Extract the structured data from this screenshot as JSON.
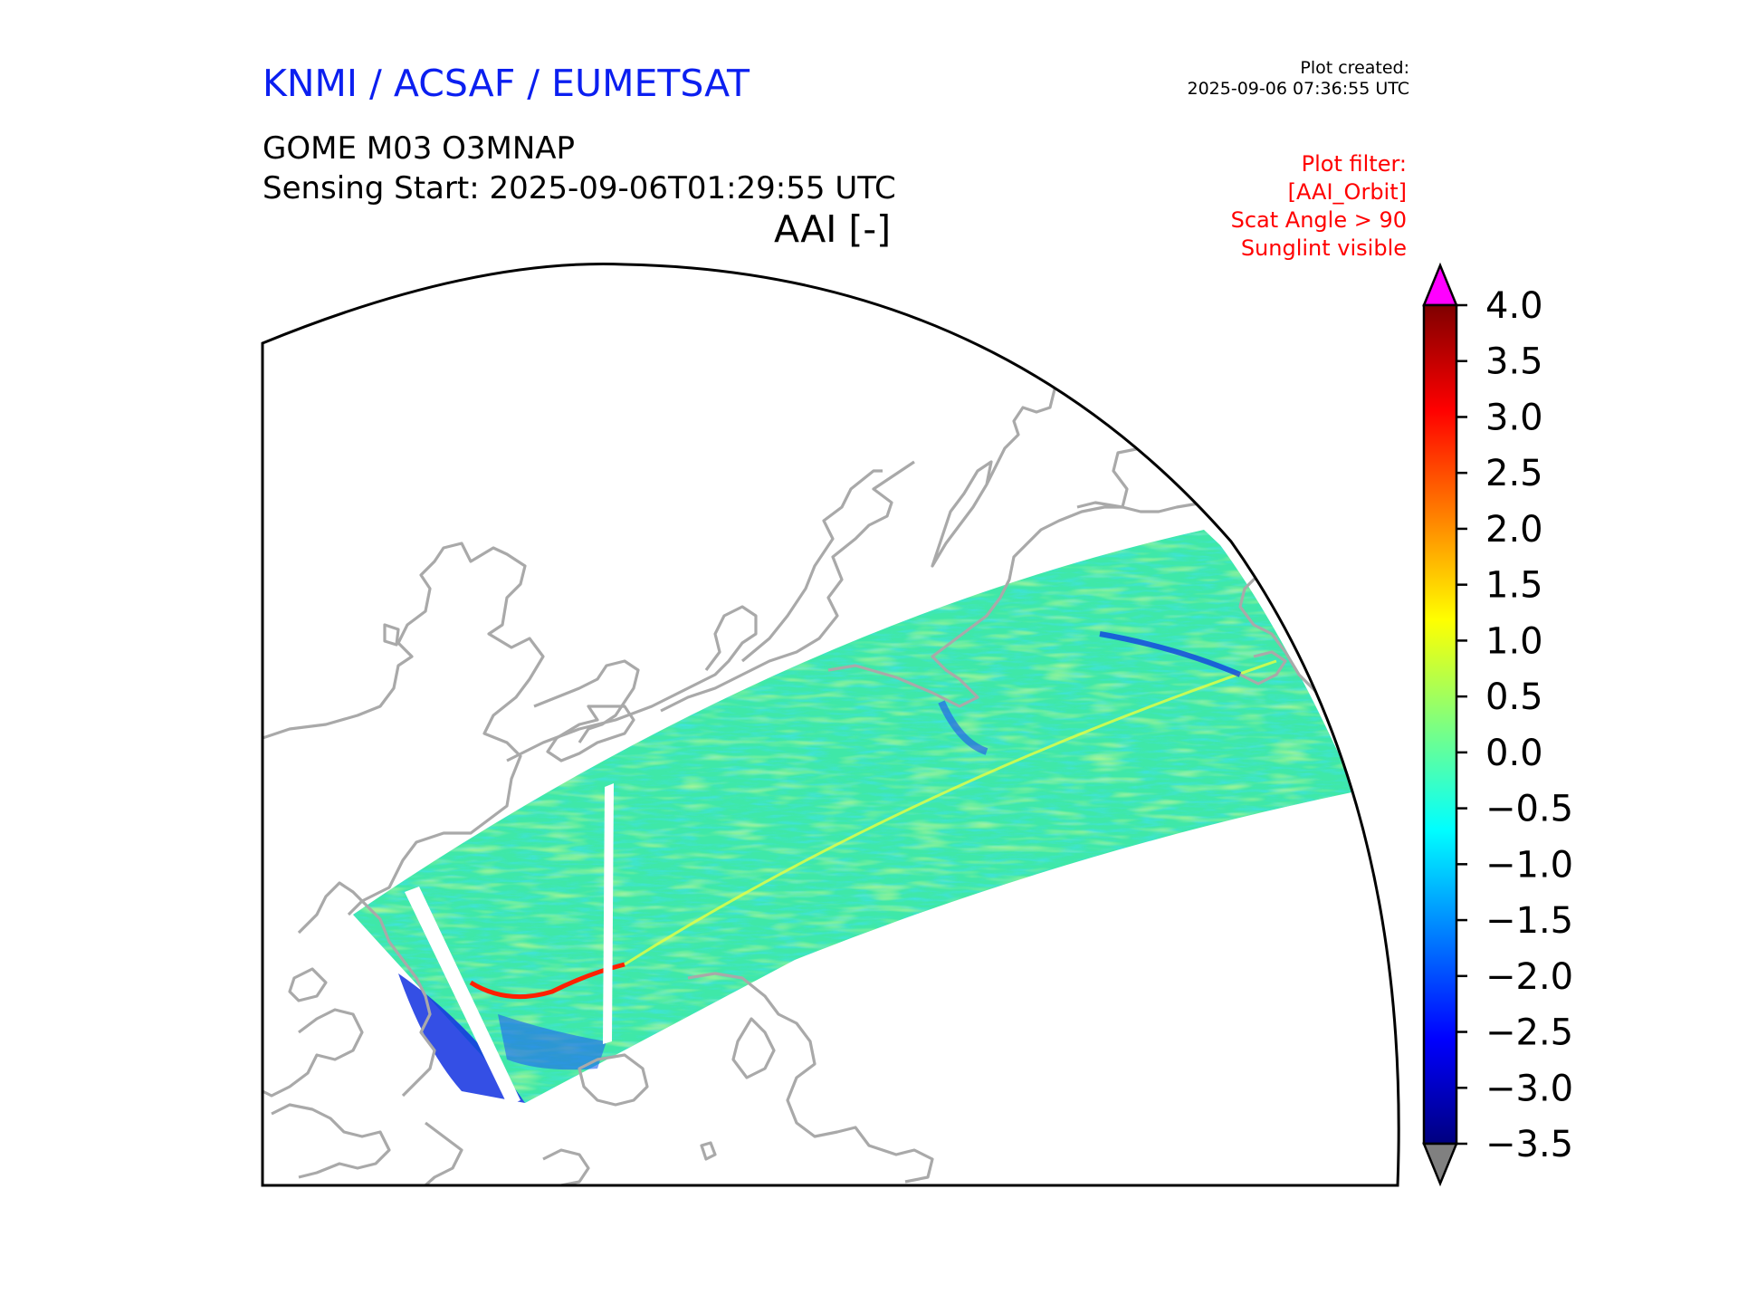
{
  "header": {
    "org": "KNMI / ACSAF / EUMETSAT",
    "created_label": "Plot created:",
    "created_value": "2025-09-06 07:36:55 UTC",
    "product": "GOME M03 O3MNAP",
    "sensing_start": "Sensing Start: 2025-09-06T01:29:55 UTC",
    "parameter": "AAI [-]"
  },
  "filter": {
    "lines": [
      "Plot filter:",
      "[AAI_Orbit]",
      "Scat Angle > 90",
      "Sunglint visible"
    ]
  },
  "colorbar": {
    "min": -3.5,
    "max": 4.0,
    "ticks": [
      "4.0",
      "3.5",
      "3.0",
      "2.5",
      "2.0",
      "1.5",
      "1.0",
      "0.5",
      "0.0",
      "−0.5",
      "−1.0",
      "−1.5",
      "−2.0",
      "−2.5",
      "−3.0",
      "−3.5"
    ],
    "tick_values": [
      4.0,
      3.5,
      3.0,
      2.5,
      2.0,
      1.5,
      1.0,
      0.5,
      0.0,
      -0.5,
      -1.0,
      -1.5,
      -2.0,
      -2.5,
      -3.0,
      -3.5
    ],
    "over_color": "#ff00ff",
    "under_color": "#808080",
    "colormap": [
      "#00007f",
      "#0000ff",
      "#007fff",
      "#00ffff",
      "#7fff7f",
      "#ffff00",
      "#ff7f00",
      "#ff0000",
      "#7f0000"
    ]
  },
  "map": {
    "coastline_color": "#a9a9a9",
    "swath_base_color": "#3fe8a8"
  }
}
